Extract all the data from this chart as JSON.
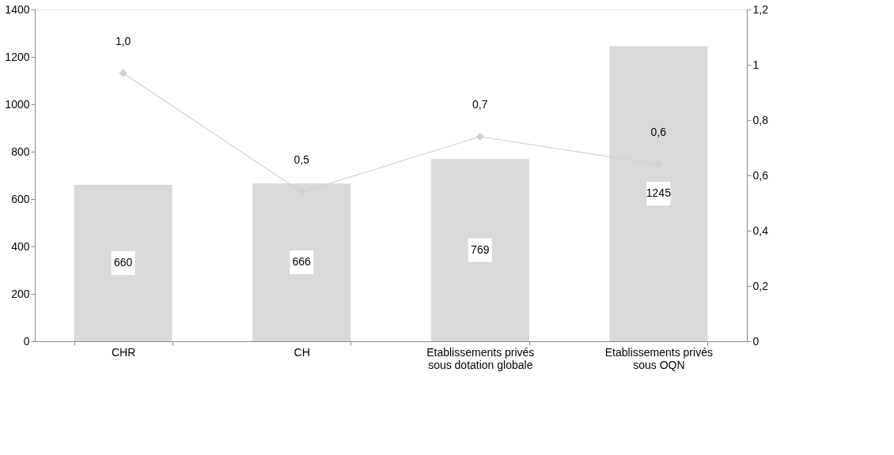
{
  "chart_data": {
    "type": "bar",
    "categories": [
      "CHR",
      "CH",
      "Etablissements privés sous dotation globale",
      "Etablissements privés sous OQN"
    ],
    "series": [
      {
        "color": "#d9d9d9",
        "values": [
          660,
          666,
          769,
          1245
        ],
        "data_labels": true
      },
      {
        "type": "line",
        "axis": "y2",
        "color": "#d0d0d0",
        "marker": "diamond",
        "line_style": "solid",
        "values": [
          0.97,
          0.54,
          0.74,
          0.64
        ],
        "value_labels": [
          "1,0",
          "0,5",
          "0,7",
          "0,6"
        ]
      }
    ],
    "ylim": [
      0,
      1400
    ],
    "yticks": [
      0,
      200,
      400,
      600,
      800,
      1000,
      1200,
      1400
    ],
    "y2lim": [
      0,
      1.2
    ],
    "y2ticks": [
      0,
      {
        "value": 0.2,
        "label": "0,2"
      },
      {
        "value": 0.4,
        "label": "0,4"
      },
      {
        "value": 0.6,
        "label": "0,6"
      },
      {
        "value": 0.8,
        "label": "0,8"
      },
      1,
      {
        "value": 1.2,
        "label": "1,2"
      }
    ],
    "grid": false
  }
}
